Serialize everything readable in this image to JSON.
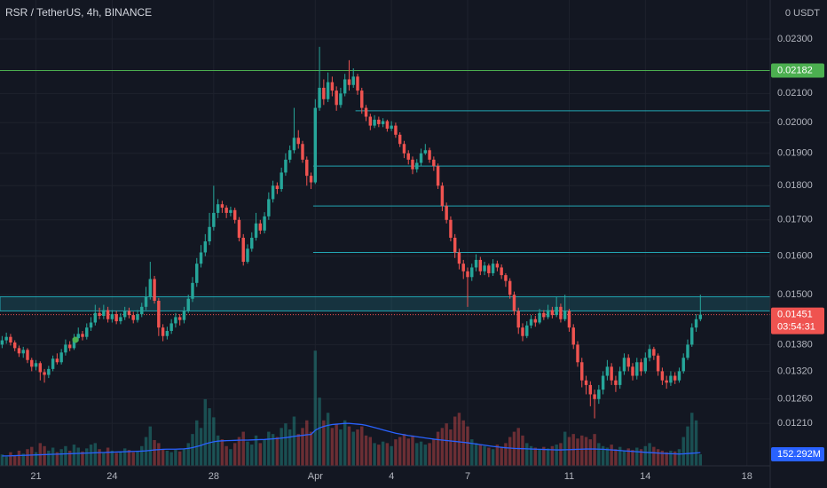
{
  "chart_data": {
    "type": "candlestick",
    "title": "RSR / TetherUS, 4h, BINANCE",
    "ylabel": "0 USDT",
    "log": true,
    "grid": true,
    "up_color": "#26a69a",
    "down_color": "#ef5350",
    "categories": [
      null,
      null,
      null,
      null,
      null,
      null,
      null,
      null,
      "21",
      null,
      null,
      null,
      null,
      null,
      null,
      null,
      null,
      null,
      null,
      null,
      null,
      null,
      null,
      null,
      null,
      null,
      "24",
      null,
      null,
      null,
      null,
      null,
      null,
      null,
      null,
      null,
      null,
      null,
      null,
      null,
      null,
      null,
      null,
      null,
      null,
      null,
      null,
      null,
      null,
      null,
      "28",
      null,
      null,
      null,
      null,
      null,
      null,
      null,
      null,
      null,
      null,
      null,
      null,
      null,
      null,
      null,
      null,
      null,
      null,
      null,
      null,
      null,
      null,
      null,
      "Apr",
      null,
      null,
      null,
      null,
      null,
      null,
      null,
      null,
      null,
      null,
      null,
      null,
      null,
      null,
      null,
      null,
      null,
      "4",
      null,
      null,
      null,
      null,
      null,
      null,
      null,
      null,
      null,
      null,
      null,
      null,
      null,
      null,
      null,
      null,
      null,
      "7",
      null,
      null,
      null,
      null,
      null,
      null,
      null,
      null,
      null,
      null,
      null,
      null,
      null,
      null,
      null,
      null,
      null,
      null,
      null,
      null,
      null,
      null,
      null,
      "11",
      null,
      null,
      null,
      null,
      null,
      null,
      null,
      null,
      null,
      null,
      null,
      null,
      null,
      null,
      null,
      null,
      null,
      "14",
      null,
      null,
      null,
      null,
      null,
      null,
      null,
      null,
      null,
      null,
      null,
      null,
      null,
      null,
      null,
      null,
      null,
      null,
      null,
      null,
      null,
      null,
      null,
      "18",
      null,
      null,
      null,
      null,
      null
    ],
    "open": [
      0.0138,
      0.0139,
      0.01398,
      0.01385,
      0.01372,
      0.0136,
      0.01368,
      0.01345,
      0.0133,
      0.01338,
      0.01318,
      0.01312,
      0.01325,
      0.01348,
      0.0134,
      0.01362,
      0.0138,
      0.01372,
      0.01395,
      0.01405,
      0.01398,
      0.0142,
      0.01432,
      0.01455,
      0.01448,
      0.01462,
      0.0144,
      0.01452,
      0.01435,
      0.01445,
      0.0146,
      0.0145,
      0.01438,
      0.01452,
      0.0147,
      0.01495,
      0.0154,
      0.01485,
      0.0142,
      0.014,
      0.01412,
      0.0143,
      0.01445,
      0.01438,
      0.0146,
      0.0149,
      0.0153,
      0.0158,
      0.0161,
      0.0164,
      0.0168,
      0.0172,
      0.01745,
      0.01735,
      0.0172,
      0.01728,
      0.017,
      0.0165,
      0.01585,
      0.0162,
      0.0165,
      0.0169,
      0.0167,
      0.0171,
      0.0176,
      0.018,
      0.0179,
      0.0184,
      0.0188,
      0.0191,
      0.0195,
      0.0193,
      0.0188,
      0.0183,
      0.0181,
      0.0205,
      0.0212,
      0.0208,
      0.0214,
      0.0211,
      0.0206,
      0.021,
      0.0215,
      0.0213,
      0.0216,
      0.0211,
      0.0205,
      0.0202,
      0.0199,
      0.0201,
      0.01995,
      0.02005,
      0.0198,
      0.0199,
      0.0196,
      0.0193,
      0.019,
      0.0188,
      0.0185,
      0.0187,
      0.019,
      0.0191,
      0.0188,
      0.0186,
      0.018,
      0.0174,
      0.017,
      0.0165,
      0.0161,
      0.0158,
      0.0156,
      0.01545,
      0.0157,
      0.0159,
      0.0156,
      0.01575,
      0.01555,
      0.0158,
      0.0157,
      0.0155,
      0.01535,
      0.015,
      0.0146,
      0.0142,
      0.014,
      0.01425,
      0.0144,
      0.01432,
      0.01455,
      0.01445,
      0.01462,
      0.0145,
      0.0147,
      0.0144,
      0.0146,
      0.0142,
      0.0138,
      0.0134,
      0.013,
      0.0129,
      0.0127,
      0.0126,
      0.0128,
      0.0131,
      0.0133,
      0.013,
      0.0129,
      0.0132,
      0.0135,
      0.0133,
      0.0131,
      0.0134,
      0.0132,
      0.0135,
      0.0137,
      0.01355,
      0.0132,
      0.013,
      0.01295,
      0.0131,
      0.013,
      0.0132,
      0.0135,
      0.0138,
      0.0142,
      0.0144,
      null,
      null,
      null,
      null,
      null,
      null,
      null,
      null,
      null,
      null,
      null,
      null,
      null,
      null,
      null,
      null
    ],
    "high": [
      0.014,
      0.01408,
      0.01405,
      0.0139,
      0.01378,
      0.01375,
      0.01372,
      0.0135,
      0.01345,
      0.01342,
      0.01325,
      0.01332,
      0.01355,
      0.0136,
      0.0137,
      0.01392,
      0.01388,
      0.01405,
      0.0142,
      0.01412,
      0.0143,
      0.01445,
      0.01475,
      0.01468,
      0.01475,
      0.0147,
      0.01462,
      0.0146,
      0.01455,
      0.0147,
      0.01468,
      0.01458,
      0.01462,
      0.0148,
      0.0152,
      0.01585,
      0.01548,
      0.01492,
      0.01428,
      0.01422,
      0.0144,
      0.01455,
      0.01452,
      0.0147,
      0.015,
      0.01545,
      0.01595,
      0.0163,
      0.0166,
      0.0172,
      0.018,
      0.0176,
      0.01755,
      0.01742,
      0.01738,
      0.01735,
      0.01708,
      0.0166,
      0.01632,
      0.01665,
      0.0172,
      0.017,
      0.01722,
      0.0178,
      0.01815,
      0.0181,
      0.01855,
      0.019,
      0.01925,
      0.0205,
      0.01975,
      0.0194,
      0.0189,
      0.0184,
      0.0208,
      0.0227,
      0.0215,
      0.02175,
      0.0216,
      0.02125,
      0.0212,
      0.0217,
      0.0222,
      0.0219,
      0.0217,
      0.0212,
      0.0206,
      0.0203,
      0.02025,
      0.0202,
      0.02015,
      0.0201,
      0.02005,
      0.02,
      0.01968,
      0.0194,
      0.0191,
      0.0189,
      0.01882,
      0.01915,
      0.0193,
      0.01918,
      0.0189,
      0.01868,
      0.0181,
      0.0175,
      0.0171,
      0.0166,
      0.0162,
      0.0159,
      0.0157,
      0.0158,
      0.01605,
      0.01598,
      0.01585,
      0.0158,
      0.01592,
      0.01588,
      0.01578,
      0.01555,
      0.01542,
      0.01508,
      0.01468,
      0.0143,
      0.01435,
      0.0145,
      0.01448,
      0.01465,
      0.01462,
      0.01475,
      0.0147,
      0.01495,
      0.01478,
      0.015,
      0.01465,
      0.01428,
      0.01388,
      0.0135,
      0.0131,
      0.01298,
      0.0128,
      0.0129,
      0.0132,
      0.01345,
      0.01338,
      0.0131,
      0.0133,
      0.0136,
      0.01358,
      0.01338,
      0.0135,
      0.01348,
      0.01362,
      0.0138,
      0.01375,
      0.0136,
      0.01328,
      0.0131,
      0.0132,
      0.01318,
      0.01328,
      0.0136,
      0.01392,
      0.0143,
      0.01452,
      0.015,
      null,
      null,
      null,
      null,
      null,
      null,
      null,
      null,
      null,
      null,
      null,
      null,
      null,
      null,
      null,
      null
    ],
    "low": [
      0.01372,
      0.01382,
      0.01378,
      0.01365,
      0.01352,
      0.0135,
      0.01338,
      0.0132,
      0.01322,
      0.013,
      0.01295,
      0.01305,
      0.0132,
      0.01335,
      0.01335,
      0.01355,
      0.01365,
      0.01368,
      0.01388,
      0.0139,
      0.01392,
      0.01412,
      0.01425,
      0.0144,
      0.0144,
      0.01432,
      0.01432,
      0.01428,
      0.01428,
      0.01438,
      0.01442,
      0.0143,
      0.01432,
      0.01445,
      0.01462,
      0.01488,
      0.01478,
      0.014,
      0.01388,
      0.01392,
      0.01405,
      0.0142,
      0.01425,
      0.0143,
      0.01455,
      0.01482,
      0.0152,
      0.0157,
      0.016,
      0.0163,
      0.0167,
      0.01705,
      0.0172,
      0.01705,
      0.0171,
      0.0169,
      0.0164,
      0.01575,
      0.0158,
      0.01612,
      0.01642,
      0.0166,
      0.01662,
      0.017,
      0.0175,
      0.01775,
      0.01782,
      0.0183,
      0.0187,
      0.019,
      0.01915,
      0.0187,
      0.018,
      0.0179,
      0.01805,
      0.0204,
      0.0206,
      0.0207,
      0.0209,
      0.0204,
      0.0205,
      0.0209,
      0.0211,
      0.0212,
      0.02095,
      0.0203,
      0.02005,
      0.01975,
      0.01982,
      0.01985,
      0.01985,
      0.0197,
      0.01972,
      0.0195,
      0.0192,
      0.01885,
      0.01865,
      0.01835,
      0.0184,
      0.0186,
      0.01895,
      0.0187,
      0.01845,
      0.0179,
      0.01725,
      0.0169,
      0.0164,
      0.01595,
      0.01565,
      0.0154,
      0.0147,
      0.01535,
      0.0156,
      0.0155,
      0.0155,
      0.01545,
      0.01548,
      0.0156,
      0.0154,
      0.0152,
      0.0149,
      0.0145,
      0.01405,
      0.01388,
      0.01395,
      0.01418,
      0.01422,
      0.01428,
      0.01438,
      0.0144,
      0.01442,
      0.01445,
      0.01432,
      0.01435,
      0.0141,
      0.0137,
      0.0133,
      0.01285,
      0.0127,
      0.01245,
      0.0122,
      0.0125,
      0.0127,
      0.013,
      0.0129,
      0.01275,
      0.01282,
      0.01312,
      0.0132,
      0.013,
      0.01302,
      0.0131,
      0.01315,
      0.01342,
      0.01345,
      0.0131,
      0.0129,
      0.01282,
      0.01288,
      0.01292,
      0.01295,
      0.01315,
      0.01345,
      0.01375,
      0.0141,
      0.01435,
      null,
      null,
      null,
      null,
      null,
      null,
      null,
      null,
      null,
      null,
      null,
      null,
      null,
      null,
      null,
      null
    ],
    "close": [
      0.0139,
      0.01398,
      0.01385,
      0.01372,
      0.0136,
      0.01368,
      0.01345,
      0.0133,
      0.01338,
      0.01318,
      0.01312,
      0.01325,
      0.01348,
      0.0134,
      0.01362,
      0.0138,
      0.01372,
      0.01395,
      0.01405,
      0.01398,
      0.0142,
      0.01432,
      0.01455,
      0.01448,
      0.01462,
      0.0144,
      0.01452,
      0.01435,
      0.01445,
      0.0146,
      0.0145,
      0.01438,
      0.01452,
      0.0147,
      0.01495,
      0.0154,
      0.01485,
      0.0142,
      0.014,
      0.01412,
      0.0143,
      0.01445,
      0.01438,
      0.0146,
      0.0149,
      0.0153,
      0.0158,
      0.0161,
      0.0164,
      0.0168,
      0.0172,
      0.01745,
      0.01735,
      0.0172,
      0.01728,
      0.017,
      0.0165,
      0.01585,
      0.0162,
      0.0165,
      0.0169,
      0.0167,
      0.0171,
      0.0176,
      0.018,
      0.0179,
      0.0184,
      0.0188,
      0.0191,
      0.0195,
      0.0193,
      0.0188,
      0.0183,
      0.0181,
      0.0205,
      0.0212,
      0.0208,
      0.0214,
      0.0211,
      0.0206,
      0.021,
      0.0215,
      0.0213,
      0.0216,
      0.0211,
      0.0205,
      0.0202,
      0.0199,
      0.0201,
      0.01995,
      0.02005,
      0.0198,
      0.0199,
      0.0196,
      0.0193,
      0.019,
      0.0188,
      0.0185,
      0.0187,
      0.019,
      0.0191,
      0.0188,
      0.0186,
      0.018,
      0.0174,
      0.017,
      0.0165,
      0.0161,
      0.0158,
      0.0156,
      0.01545,
      0.0157,
      0.0159,
      0.0156,
      0.01575,
      0.01555,
      0.0158,
      0.0157,
      0.0155,
      0.01535,
      0.015,
      0.0146,
      0.0142,
      0.014,
      0.01425,
      0.0144,
      0.01432,
      0.01455,
      0.01445,
      0.01462,
      0.0145,
      0.0147,
      0.0144,
      0.0146,
      0.0142,
      0.0138,
      0.0134,
      0.013,
      0.0129,
      0.0127,
      0.0126,
      0.0128,
      0.0131,
      0.0133,
      0.013,
      0.0129,
      0.0132,
      0.0135,
      0.0133,
      0.0131,
      0.0134,
      0.0132,
      0.0135,
      0.0137,
      0.01355,
      0.0132,
      0.013,
      0.01295,
      0.0131,
      0.013,
      0.0132,
      0.0135,
      0.0138,
      0.0142,
      0.0144,
      0.01451,
      null,
      null,
      null,
      null,
      null,
      null,
      null,
      null,
      null,
      null,
      null,
      null,
      null,
      null,
      null,
      null
    ],
    "volume": {
      "label": "152.292M",
      "color": "#2962ff",
      "values": [
        150,
        120,
        180,
        140,
        200,
        160,
        220,
        250,
        180,
        300,
        260,
        200,
        240,
        180,
        220,
        260,
        200,
        280,
        240,
        190,
        230,
        280,
        300,
        220,
        180,
        240,
        200,
        170,
        190,
        230,
        210,
        180,
        200,
        260,
        380,
        520,
        340,
        300,
        220,
        200,
        180,
        210,
        190,
        230,
        300,
        420,
        600,
        500,
        880,
        760,
        640,
        400,
        350,
        260,
        220,
        300,
        380,
        450,
        320,
        280,
        400,
        300,
        350,
        450,
        420,
        380,
        500,
        560,
        480,
        650,
        420,
        500,
        600,
        450,
        1520,
        900,
        600,
        700,
        500,
        550,
        480,
        600,
        520,
        450,
        480,
        520,
        400,
        380,
        300,
        280,
        320,
        300,
        260,
        350,
        380,
        420,
        360,
        400,
        300,
        320,
        280,
        300,
        350,
        450,
        500,
        560,
        480,
        650,
        700,
        600,
        520,
        350,
        300,
        280,
        260,
        240,
        220,
        280,
        250,
        300,
        380,
        450,
        500,
        400,
        300,
        260,
        240,
        220,
        250,
        230,
        260,
        280,
        300,
        450,
        380,
        420,
        360,
        400,
        380,
        350,
        420,
        300,
        260,
        240,
        280,
        220,
        250,
        200,
        230,
        210,
        240,
        220,
        260,
        300,
        250,
        220,
        200,
        180,
        200,
        190,
        220,
        380,
        520,
        700,
        600,
        152.292,
        null,
        null,
        null,
        null,
        null,
        null,
        null,
        null,
        null,
        null,
        null,
        null,
        null,
        null,
        null,
        null
      ]
    },
    "volume_ma": {
      "color": "#2962ff",
      "values": [
        130,
        130,
        132,
        134,
        136,
        138,
        140,
        142,
        144,
        146,
        148,
        150,
        152,
        154,
        156,
        158,
        160,
        162,
        164,
        166,
        168,
        170,
        172,
        174,
        176,
        178,
        180,
        182,
        184,
        186,
        188,
        190,
        192,
        194,
        198,
        204,
        210,
        214,
        218,
        220,
        220,
        220,
        222,
        224,
        230,
        240,
        255,
        270,
        290,
        305,
        318,
        326,
        330,
        332,
        334,
        336,
        338,
        340,
        340,
        342,
        344,
        346,
        348,
        352,
        356,
        360,
        366,
        372,
        380,
        390,
        396,
        402,
        410,
        414,
        470,
        500,
        520,
        535,
        545,
        550,
        555,
        560,
        560,
        555,
        550,
        545,
        535,
        520,
        505,
        490,
        475,
        460,
        445,
        430,
        420,
        410,
        400,
        392,
        384,
        376,
        368,
        360,
        352,
        346,
        340,
        334,
        328,
        322,
        316,
        310,
        304,
        296,
        288,
        280,
        272,
        264,
        256,
        250,
        244,
        238,
        234,
        230,
        228,
        226,
        224,
        222,
        220,
        218,
        216,
        214,
        212,
        210,
        210,
        212,
        214,
        216,
        218,
        220,
        222,
        222,
        222,
        220,
        218,
        214,
        210,
        206,
        202,
        198,
        194,
        190,
        186,
        182,
        178,
        175,
        172,
        168,
        165,
        162,
        160,
        158,
        156,
        158,
        162,
        166,
        170,
        174,
        null,
        null,
        null,
        null,
        null,
        null,
        null,
        null,
        null,
        null,
        null,
        null,
        null,
        null,
        null,
        null
      ]
    },
    "ylim": [
      0.01127,
      0.02455
    ],
    "yticks": [
      {
        "value": 0.023,
        "label": "0.02300"
      },
      {
        "value": 0.021,
        "label": "0.02100"
      },
      {
        "value": 0.02,
        "label": "0.02000"
      },
      {
        "value": 0.019,
        "label": "0.01900"
      },
      {
        "value": 0.018,
        "label": "0.01800"
      },
      {
        "value": 0.017,
        "label": "0.01700"
      },
      {
        "value": 0.016,
        "label": "0.01600"
      },
      {
        "value": 0.015,
        "label": "0.01500"
      },
      {
        "value": 0.0138,
        "label": "0.01380"
      },
      {
        "value": 0.0132,
        "label": "0.01320"
      },
      {
        "value": 0.0126,
        "label": "0.01260"
      },
      {
        "value": 0.0121,
        "label": "0.01210"
      }
    ],
    "y2lim": [
      0,
      6150
    ],
    "levels": [
      {
        "value": 0.02182,
        "label": "0.02182",
        "color": "#4caf50",
        "from": 0
      },
      {
        "value": 0.0204,
        "color": "#22a6b3",
        "from": 84
      },
      {
        "value": 0.0186,
        "color": "#22a6b3",
        "from": 74
      },
      {
        "value": 0.0174,
        "color": "#22a6b3",
        "from": 74
      },
      {
        "value": 0.0161,
        "color": "#22a6b3",
        "from": 74
      }
    ],
    "zone": {
      "low": 0.0146,
      "high": 0.01495,
      "color": "#22a6b3"
    },
    "last_price": {
      "value": 0.01451,
      "label": "0.01451",
      "countdown": "03:54:31",
      "color": "#ef5350"
    }
  }
}
